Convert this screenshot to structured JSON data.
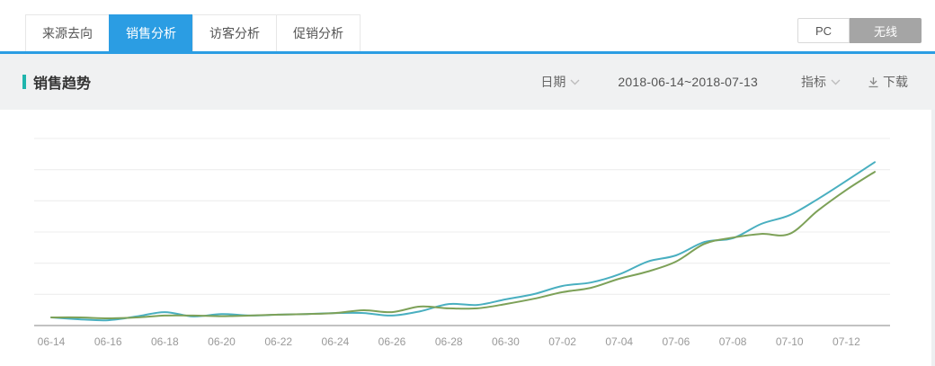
{
  "tabs": {
    "items": [
      {
        "label": "来源去向"
      },
      {
        "label": "销售分析"
      },
      {
        "label": "访客分析"
      },
      {
        "label": "促销分析"
      }
    ],
    "active_index": 1
  },
  "device_toggle": {
    "options": [
      {
        "label": "PC"
      },
      {
        "label": "无线"
      }
    ],
    "selected": "无线"
  },
  "panel": {
    "title": "销售趋势"
  },
  "controls": {
    "date_label": "日期",
    "date_range": "2018-06-14~2018-07-13",
    "metric_label": "指标",
    "download_label": "下载"
  },
  "colors": {
    "accent_blue": "#2b9de3",
    "accent_teal": "#1fb5ad",
    "toggle_selected_gray": "#a5a5a5",
    "line_teal": "#49afc0",
    "line_green": "#7da158",
    "gridline": "#ececec",
    "axis_line": "#c2c2c2",
    "tick_label": "#999999"
  },
  "chart_data": {
    "type": "line",
    "title": "销售趋势",
    "x": [
      "06-14",
      "06-15",
      "06-16",
      "06-17",
      "06-18",
      "06-19",
      "06-20",
      "06-21",
      "06-22",
      "06-23",
      "06-24",
      "06-25",
      "06-26",
      "06-27",
      "06-28",
      "06-29",
      "06-30",
      "07-01",
      "07-02",
      "07-03",
      "07-04",
      "07-05",
      "07-06",
      "07-07",
      "07-08",
      "07-09",
      "07-10",
      "07-11",
      "07-12",
      "07-13"
    ],
    "x_tick_labels_shown": [
      "06-14",
      "06-16",
      "06-18",
      "06-20",
      "06-22",
      "06-24",
      "06-26",
      "06-28",
      "06-30",
      "07-02",
      "07-04",
      "07-06",
      "07-08",
      "07-10",
      "07-12"
    ],
    "series": [
      {
        "name": "series-teal",
        "color": "#49afc0",
        "values": [
          0.26,
          0.2,
          0.17,
          0.29,
          0.43,
          0.29,
          0.37,
          0.32,
          0.35,
          0.37,
          0.4,
          0.4,
          0.32,
          0.46,
          0.69,
          0.66,
          0.84,
          1.01,
          1.27,
          1.38,
          1.64,
          2.05,
          2.25,
          2.68,
          2.8,
          3.26,
          3.54,
          4.06,
          4.64,
          5.24
        ]
      },
      {
        "name": "series-green",
        "color": "#7da158",
        "values": [
          0.26,
          0.26,
          0.23,
          0.26,
          0.32,
          0.32,
          0.3,
          0.32,
          0.35,
          0.37,
          0.4,
          0.49,
          0.43,
          0.61,
          0.55,
          0.55,
          0.69,
          0.86,
          1.07,
          1.21,
          1.5,
          1.73,
          2.05,
          2.62,
          2.82,
          2.94,
          2.94,
          3.69,
          4.35,
          4.93
        ]
      }
    ],
    "xlabel": "",
    "ylabel": "",
    "ylim": [
      0,
      6
    ],
    "y_tick_labels_visible": false,
    "grid": true,
    "smooth": true,
    "legend": "none"
  }
}
